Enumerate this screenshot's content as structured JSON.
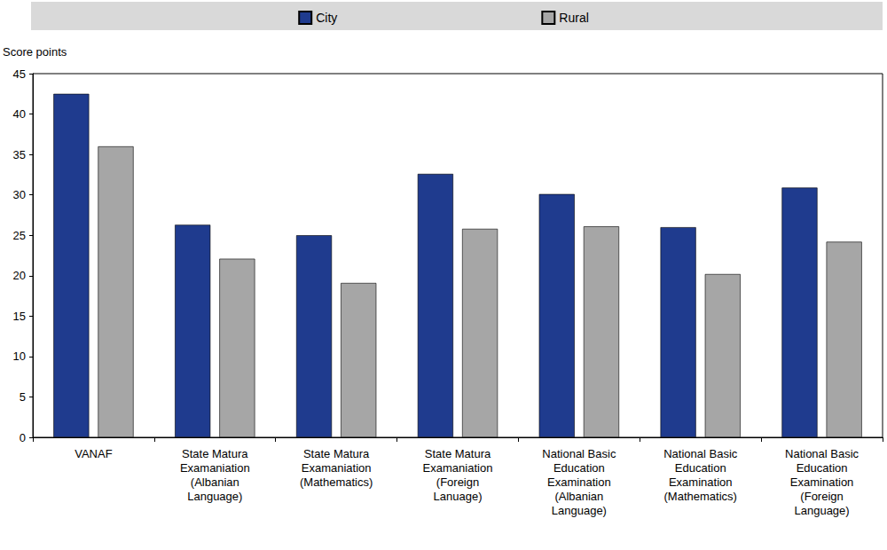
{
  "chart_data": {
    "type": "bar",
    "y_label": "Score points",
    "categories": [
      "VANAF",
      "State Matura\nExamaniation\n(Albanian\nLanguage)",
      "State Matura\nExamaniation\n(Mathematics)",
      "State Matura\nExamaniation\n(Foreign\nLanuage)",
      "National Basic\nEducation\nExamination\n(Albanian\nLanguage)",
      "National Basic\nEducation\nExamination\n(Mathematics)",
      "National Basic\nEducation\nExamination\n(Foreign\nLanguage)"
    ],
    "series": [
      {
        "name": "City",
        "color": "#1f3b8e",
        "values": [
          42.5,
          26.3,
          25.0,
          32.6,
          30.1,
          26.0,
          30.9
        ]
      },
      {
        "name": "Rural",
        "color": "#a6a6a6",
        "values": [
          36.0,
          22.1,
          19.1,
          25.8,
          26.1,
          20.2,
          24.2
        ]
      }
    ],
    "ylim": [
      0,
      45
    ],
    "yticks": [
      0,
      5,
      10,
      15,
      20,
      25,
      30,
      35,
      40,
      45
    ],
    "grid": false,
    "legend": "top"
  }
}
